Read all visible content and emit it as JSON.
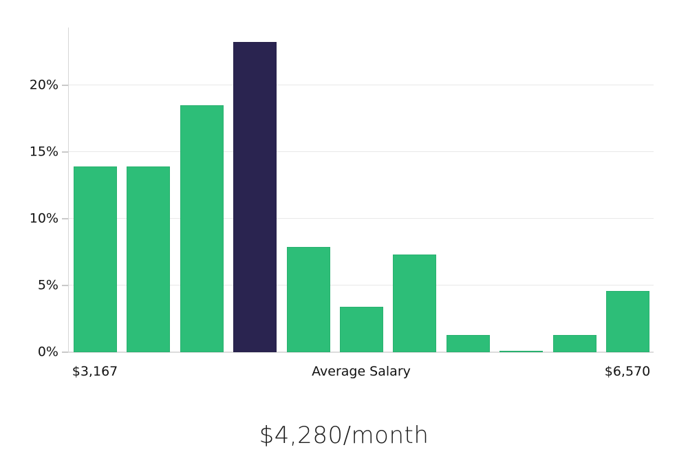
{
  "chart_data": {
    "type": "bar",
    "title": "$4,280/month",
    "values": [
      13.9,
      13.9,
      18.5,
      23.2,
      7.9,
      3.4,
      7.3,
      1.3,
      0.1,
      1.3,
      4.6
    ],
    "highlight_index": 3,
    "bar_color": "#2dbe78",
    "highlight_color": "#2a2450",
    "ylim": [
      0,
      24.3
    ],
    "y_grid_values": [
      0,
      5,
      10,
      15,
      20
    ],
    "y_tick_labels": [
      "0%",
      "5%",
      "10%",
      "15%",
      "20%"
    ],
    "x_axis_labels": {
      "min": "$3,167",
      "center": "Average Salary",
      "max": "$6,570"
    },
    "grid": true,
    "legend_position": "none",
    "xlabel": "",
    "ylabel": ""
  }
}
